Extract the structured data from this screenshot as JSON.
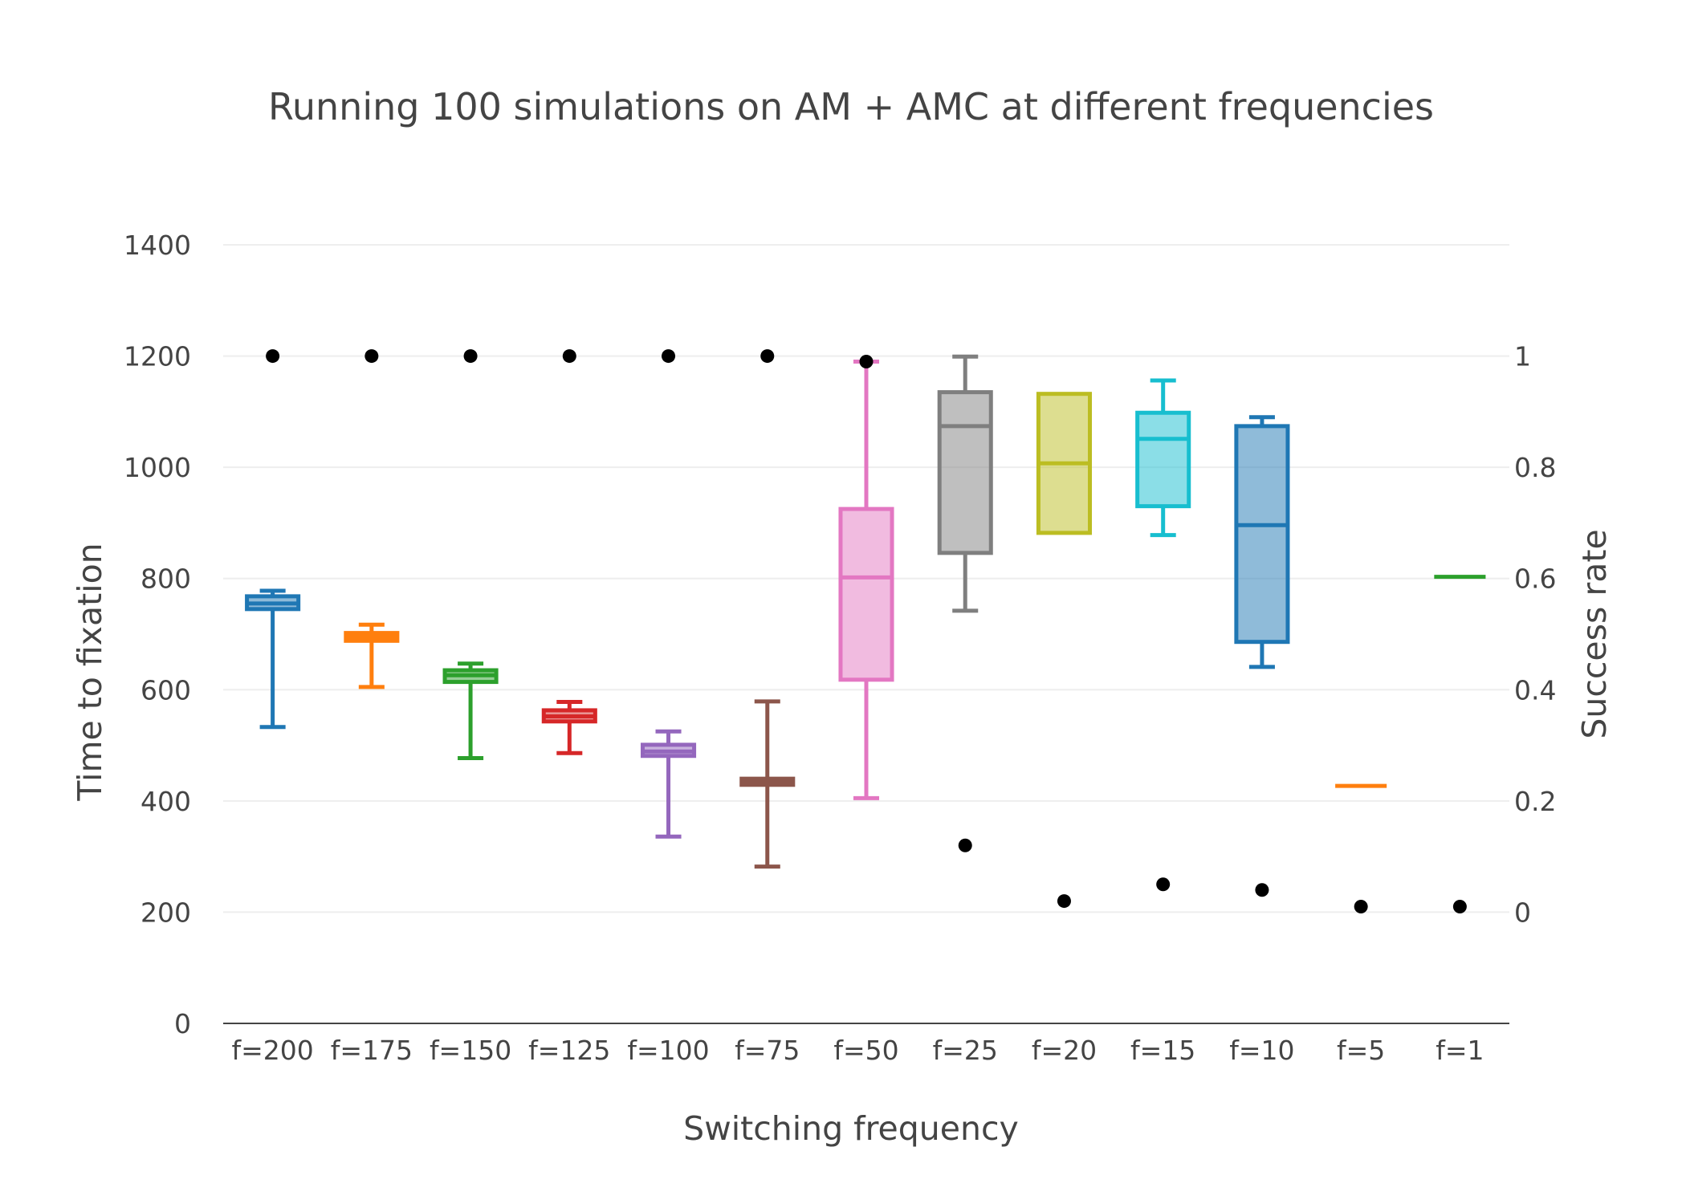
{
  "chart_data": {
    "type": "box",
    "title": "Running 100 simulations on AM + AMC at different frequencies",
    "xlabel": "Switching frequency",
    "ylabel": "Time to fixation",
    "y2label": "Success rate",
    "ylim": [
      0,
      1400
    ],
    "y2lim": [
      -0.2,
      1.2
    ],
    "yticks": [
      "0",
      "200",
      "400",
      "600",
      "800",
      "1000",
      "1200",
      "1400"
    ],
    "y2ticks": [
      "0",
      "0.2",
      "0.4",
      "0.6",
      "0.8",
      "1"
    ],
    "grid": true,
    "legend": "none",
    "categories": [
      "f=200",
      "f=175",
      "f=150",
      "f=125",
      "f=100",
      "f=75",
      "f=50",
      "f=25",
      "f=20",
      "f=15",
      "f=10",
      "f=5",
      "f=1"
    ],
    "boxes": [
      {
        "category": "f=200",
        "min": 533,
        "q1": 745,
        "median": 755,
        "q3": 768,
        "max": 778,
        "color": "#1f77b4"
      },
      {
        "category": "f=175",
        "min": 605,
        "q1": 688,
        "median": 695,
        "q3": 702,
        "max": 717,
        "color": "#ff7f0e"
      },
      {
        "category": "f=150",
        "min": 477,
        "q1": 614,
        "median": 626,
        "q3": 635,
        "max": 647,
        "color": "#2ca02c"
      },
      {
        "category": "f=125",
        "min": 486,
        "q1": 543,
        "median": 552,
        "q3": 563,
        "max": 578,
        "color": "#d62728"
      },
      {
        "category": "f=100",
        "min": 336,
        "q1": 481,
        "median": 489,
        "q3": 501,
        "max": 525,
        "color": "#9467bd"
      },
      {
        "category": "f=75",
        "min": 282,
        "q1": 429,
        "median": 435,
        "q3": 440,
        "max": 579,
        "color": "#8c564b"
      },
      {
        "category": "f=50",
        "min": 405,
        "q1": 618,
        "median": 802,
        "q3": 925,
        "max": 1190,
        "color": "#e377c2"
      },
      {
        "category": "f=25",
        "min": 742,
        "q1": 846,
        "median": 1074,
        "q3": 1135,
        "max": 1199,
        "color": "#7f7f7f"
      },
      {
        "category": "f=20",
        "min": 882,
        "q1": 882,
        "median": 1007,
        "q3": 1132,
        "max": 1132,
        "color": "#bcbd22"
      },
      {
        "category": "f=15",
        "min": 878,
        "q1": 930,
        "median": 1051,
        "q3": 1098,
        "max": 1156,
        "color": "#17becf"
      },
      {
        "category": "f=10",
        "min": 641,
        "q1": 686,
        "median": 896,
        "q3": 1074,
        "max": 1090,
        "color": "#1f77b4"
      },
      {
        "category": "f=5",
        "min": 427,
        "q1": 427,
        "median": 427,
        "q3": 427,
        "max": 427,
        "color": "#ff7f0e"
      },
      {
        "category": "f=1",
        "min": 803,
        "q1": 803,
        "median": 803,
        "q3": 803,
        "max": 803,
        "color": "#2ca02c"
      }
    ],
    "success_rate": {
      "axis": "y2",
      "color": "#000000",
      "values": [
        1,
        1,
        1,
        1,
        1,
        1,
        0.99,
        0.12,
        0.02,
        0.05,
        0.04,
        0.01,
        0.01
      ]
    }
  }
}
